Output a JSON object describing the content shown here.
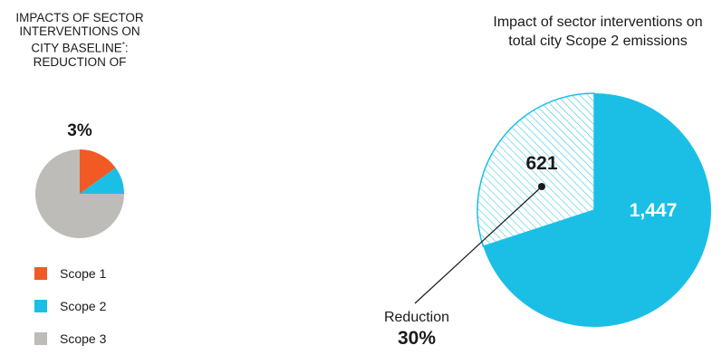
{
  "left_panel": {
    "title": "IMPACTS OF SECTOR INTERVENTIONS ON CITY BASELINE",
    "title_mark": "*",
    "title_suffix": ": REDUCTION OF",
    "reduction_value": "3%"
  },
  "legend": [
    {
      "label": "Scope 1",
      "color": "#f15a24"
    },
    {
      "label": "Scope 2",
      "color": "#1bbfe6"
    },
    {
      "label": "Scope 3",
      "color": "#bdbcb8"
    }
  ],
  "right_panel": {
    "title": "Impact of sector interventions on total city Scope 2 emissions",
    "reduction_label": "Reduction",
    "reduction_value": "30%"
  },
  "chart_data": [
    {
      "type": "pie",
      "title": "IMPACTS OF SECTOR INTERVENTIONS ON CITY BASELINE*: REDUCTION OF 3%",
      "categories": [
        "Scope 1",
        "Scope 2",
        "Scope 3"
      ],
      "values": [
        15,
        10,
        75
      ],
      "colors": [
        "#f15a24",
        "#1bbfe6",
        "#bdbcb8"
      ]
    },
    {
      "type": "pie",
      "title": "Impact of sector interventions on total city Scope 2 emissions",
      "categories": [
        "",
        "Reduction"
      ],
      "values": [
        1447,
        621
      ],
      "value_labels": [
        "1,447",
        "621"
      ],
      "colors": [
        "#1bbfe6",
        "hatched"
      ],
      "annotation": "Reduction 30%"
    }
  ]
}
